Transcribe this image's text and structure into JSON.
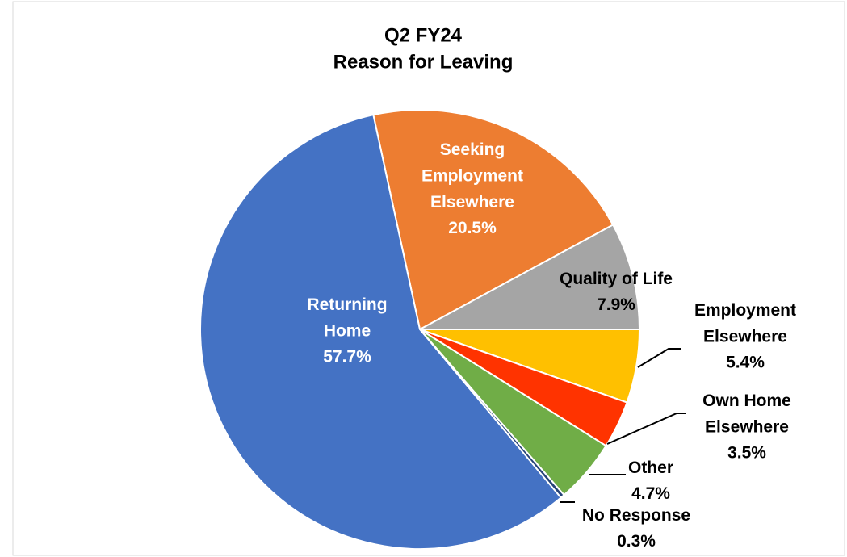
{
  "chart_data": {
    "type": "pie",
    "title": [
      "Q2 FY24",
      "Reason for Leaving"
    ],
    "categories": [
      "Seeking\nEmployment\nElsewhere",
      "Quality of Life",
      "Employment\nElsewhere",
      "Own Home\nElsewhere",
      "Other",
      "No Response",
      "Returning\nHome"
    ],
    "values": [
      20.5,
      7.9,
      5.4,
      3.5,
      4.7,
      0.3,
      57.7
    ],
    "value_labels": [
      "20.5%",
      "7.9%",
      "5.4%",
      "3.5%",
      "4.7%",
      "0.3%",
      "57.7%"
    ],
    "colors": [
      "#ed7d31",
      "#a5a5a5",
      "#ffc000",
      "#ff3300",
      "#70ad47",
      "#264478",
      "#4472c4"
    ]
  }
}
